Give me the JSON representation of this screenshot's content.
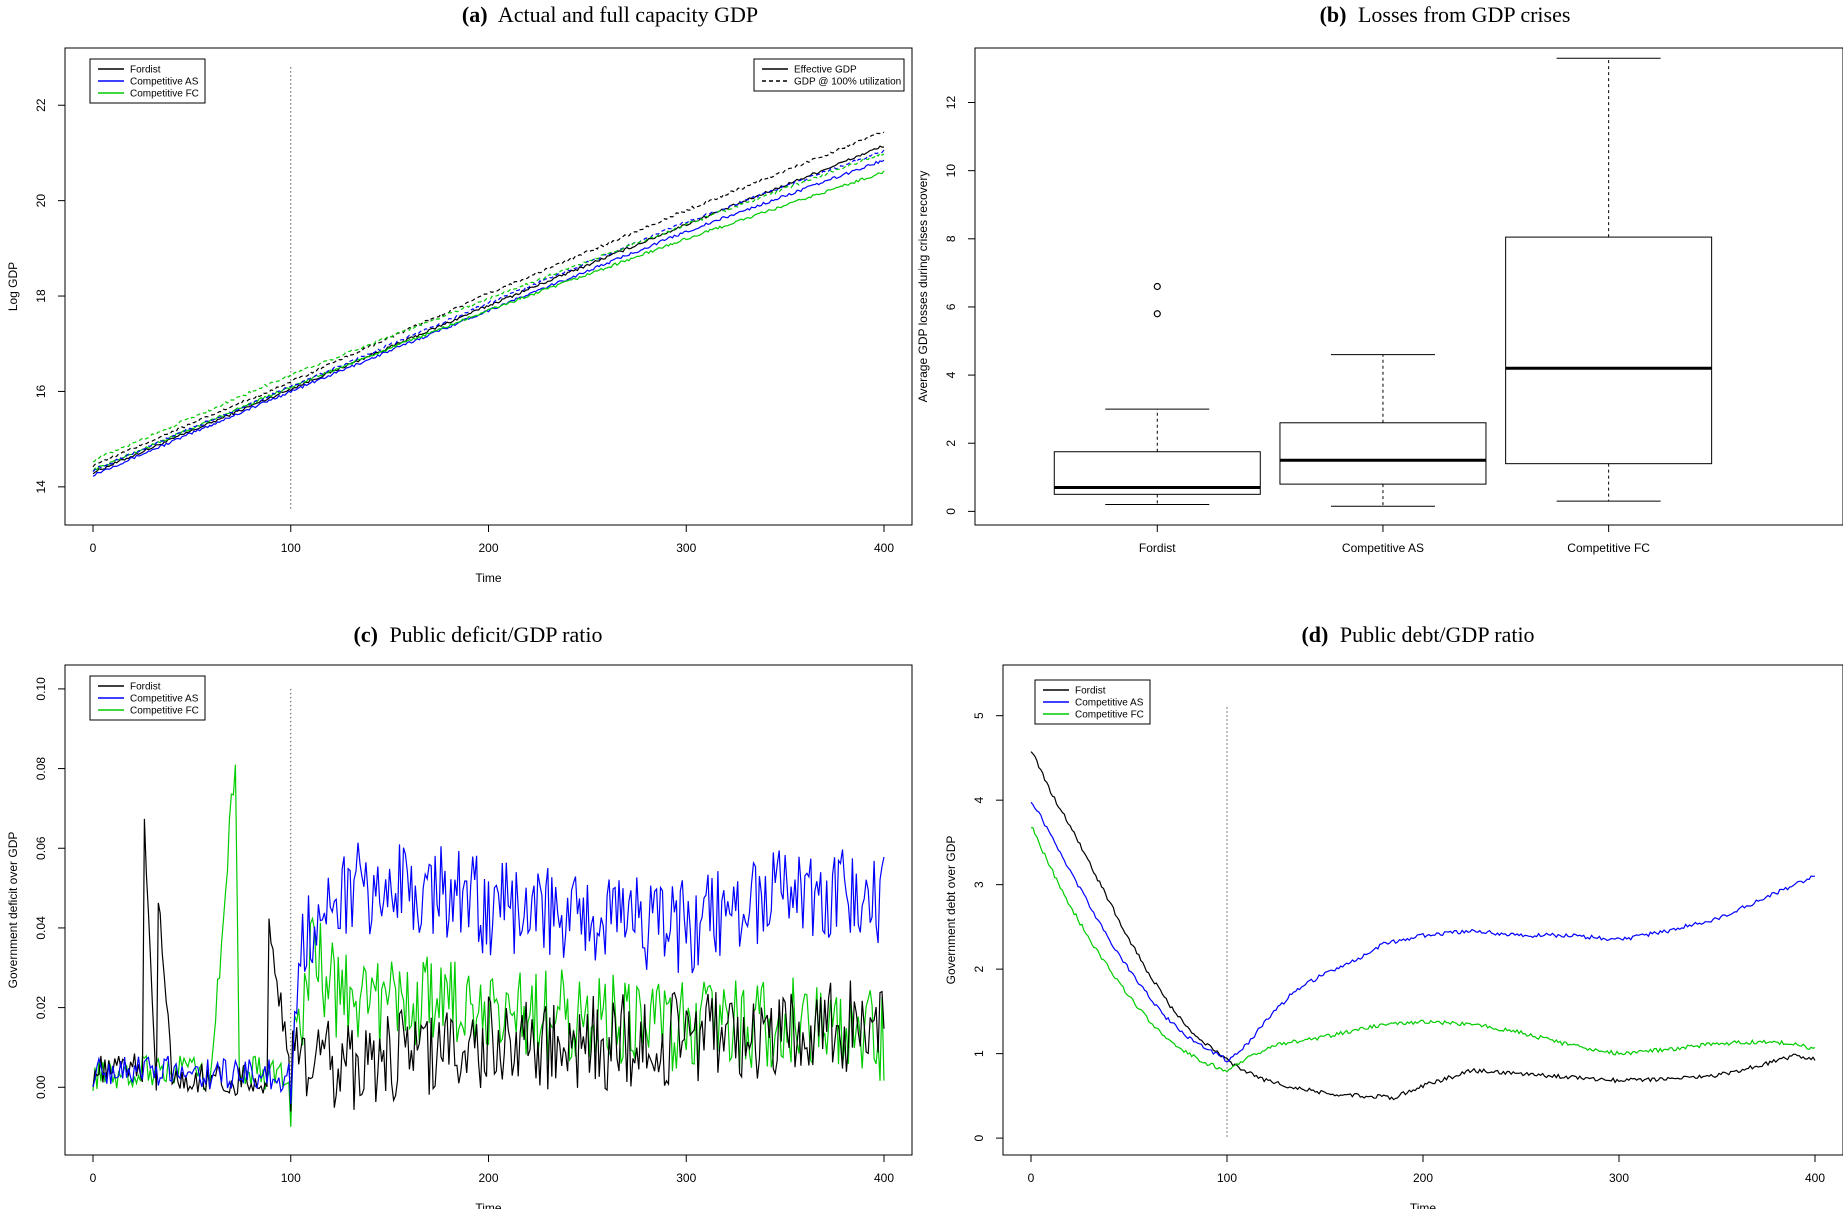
{
  "chart_data": [
    {
      "panel": "a",
      "type": "line",
      "title_prefix": "(a)",
      "title": "Actual and full capacity GDP",
      "xlabel": "Time",
      "ylabel": "Log GDP",
      "xlim": [
        0,
        400
      ],
      "ylim": [
        13.2,
        23.2
      ],
      "xticks": [
        0,
        100,
        200,
        300,
        400
      ],
      "yticks": [
        14,
        16,
        18,
        20,
        22
      ],
      "vline": 100,
      "legend_series": [
        "Fordist",
        "Competitive AS",
        "Competitive FC"
      ],
      "legend_lines": [
        "Effective GDP",
        "GDP @ 100% utilization"
      ],
      "colors": {
        "Fordist": "#000000",
        "Competitive AS": "#0000ff",
        "Competitive FC": "#00cc00"
      },
      "series": [
        {
          "name": "Fordist",
          "style": "solid",
          "x": [
            0,
            100,
            200,
            300,
            400
          ],
          "y": [
            14.3,
            16.05,
            17.8,
            19.5,
            21.15
          ]
        },
        {
          "name": "Competitive AS",
          "style": "solid",
          "x": [
            0,
            100,
            200,
            300,
            400
          ],
          "y": [
            14.25,
            16.0,
            17.7,
            19.35,
            20.85
          ]
        },
        {
          "name": "Competitive FC",
          "style": "solid",
          "x": [
            0,
            100,
            200,
            300,
            400
          ],
          "y": [
            14.35,
            16.1,
            17.7,
            19.2,
            20.6
          ]
        },
        {
          "name": "Fordist",
          "style": "dashed",
          "x": [
            0,
            100,
            200,
            300,
            400
          ],
          "y": [
            14.45,
            16.2,
            18.05,
            19.8,
            21.45
          ]
        },
        {
          "name": "Competitive AS",
          "style": "dashed",
          "x": [
            0,
            100,
            200,
            300,
            400
          ],
          "y": [
            14.35,
            16.1,
            17.85,
            19.55,
            21.05
          ]
        },
        {
          "name": "Competitive FC",
          "style": "dashed",
          "x": [
            0,
            100,
            200,
            300,
            400
          ],
          "y": [
            14.55,
            16.35,
            17.95,
            19.5,
            21.0
          ]
        }
      ]
    },
    {
      "panel": "b",
      "type": "box",
      "title_prefix": "(b)",
      "title": "Losses from GDP crises",
      "xlabel": "",
      "ylabel": "Average GDP losses during crises recovery",
      "ylim": [
        -0.4,
        13.6
      ],
      "yticks": [
        0,
        2,
        4,
        6,
        8,
        10,
        12
      ],
      "categories": [
        "Fordist",
        "Competitive AS",
        "Competitive FC"
      ],
      "boxes": [
        {
          "min": 0.2,
          "q1": 0.5,
          "median": 0.7,
          "q3": 1.75,
          "max": 3.0,
          "outliers": [
            5.8,
            6.6
          ]
        },
        {
          "min": 0.15,
          "q1": 0.8,
          "median": 1.5,
          "q3": 2.6,
          "max": 4.6,
          "outliers": []
        },
        {
          "min": 0.3,
          "q1": 1.4,
          "median": 4.2,
          "q3": 8.05,
          "max": 13.3,
          "outliers": []
        }
      ]
    },
    {
      "panel": "c",
      "type": "line",
      "title_prefix": "(c)",
      "title": "Public deficit/GDP ratio",
      "xlabel": "Time",
      "ylabel": "Government deficit over GDP",
      "xlim": [
        0,
        400
      ],
      "ylim": [
        -0.017,
        0.106
      ],
      "xticks": [
        0,
        100,
        200,
        300,
        400
      ],
      "yticks": [
        0.0,
        0.02,
        0.04,
        0.06,
        0.08,
        0.1
      ],
      "ytick_labels": [
        "0.00",
        "0.02",
        "0.04",
        "0.06",
        "0.08",
        "0.10"
      ],
      "vline": 100,
      "legend_series": [
        "Fordist",
        "Competitive AS",
        "Competitive FC"
      ],
      "colors": {
        "Fordist": "#000000",
        "Competitive AS": "#0000ff",
        "Competitive FC": "#00cc00"
      },
      "series": [
        {
          "name": "Competitive FC",
          "x": [
            0,
            20,
            40,
            60,
            72,
            74,
            80,
            100,
            110,
            120,
            140,
            160,
            180,
            200,
            250,
            300,
            350,
            400
          ],
          "y": [
            0.003,
            0.004,
            0.005,
            0.003,
            0.084,
            0.004,
            0.004,
            0.002,
            0.035,
            0.025,
            0.02,
            0.02,
            0.022,
            0.02,
            0.017,
            0.015,
            0.016,
            0.012
          ]
        },
        {
          "name": "Fordist",
          "x": [
            0,
            25,
            26,
            32,
            33,
            40,
            60,
            88,
            89,
            100,
            150,
            200,
            250,
            300,
            350,
            400
          ],
          "y": [
            0.004,
            0.005,
            0.065,
            0.002,
            0.047,
            0.003,
            0.002,
            0.002,
            0.04,
            0.003,
            0.008,
            0.012,
            0.011,
            0.012,
            0.015,
            0.015
          ]
        },
        {
          "name": "Competitive AS",
          "x": [
            0,
            20,
            40,
            60,
            80,
            100,
            105,
            120,
            150,
            175,
            200,
            250,
            300,
            350,
            400
          ],
          "y": [
            0.004,
            0.005,
            0.004,
            0.003,
            0.004,
            0.002,
            0.038,
            0.05,
            0.05,
            0.05,
            0.045,
            0.042,
            0.04,
            0.048,
            0.048
          ]
        }
      ]
    },
    {
      "panel": "d",
      "type": "line",
      "title_prefix": "(d)",
      "title": "Public debt/GDP ratio",
      "xlabel": "Time",
      "ylabel": "Government debt over GDP",
      "xlim": [
        0,
        400
      ],
      "ylim": [
        -0.2,
        5.6
      ],
      "xticks": [
        0,
        100,
        200,
        300,
        400
      ],
      "yticks": [
        0,
        1,
        2,
        3,
        4,
        5
      ],
      "vline": 100,
      "legend_series": [
        "Fordist",
        "Competitive AS",
        "Competitive FC"
      ],
      "colors": {
        "Fordist": "#000000",
        "Competitive AS": "#0000ff",
        "Competitive FC": "#00cc00"
      },
      "series": [
        {
          "name": "Fordist",
          "x": [
            0,
            10,
            20,
            30,
            40,
            50,
            60,
            70,
            80,
            90,
            100,
            115,
            130,
            150,
            170,
            185,
            200,
            225,
            250,
            275,
            300,
            325,
            350,
            375,
            390,
            400
          ],
          "y": [
            4.6,
            4.1,
            3.7,
            3.25,
            2.8,
            2.35,
            1.95,
            1.6,
            1.3,
            1.1,
            0.92,
            0.72,
            0.62,
            0.53,
            0.5,
            0.48,
            0.62,
            0.8,
            0.76,
            0.72,
            0.68,
            0.7,
            0.74,
            0.88,
            0.98,
            0.94
          ]
        },
        {
          "name": "Competitive AS",
          "x": [
            0,
            10,
            20,
            30,
            40,
            50,
            60,
            70,
            80,
            90,
            100,
            110,
            120,
            135,
            150,
            165,
            180,
            200,
            225,
            250,
            275,
            300,
            325,
            350,
            370,
            385,
            400
          ],
          "y": [
            4.0,
            3.6,
            3.15,
            2.75,
            2.35,
            2.0,
            1.68,
            1.4,
            1.2,
            1.05,
            0.92,
            1.1,
            1.4,
            1.75,
            1.95,
            2.1,
            2.3,
            2.4,
            2.45,
            2.4,
            2.4,
            2.35,
            2.45,
            2.6,
            2.8,
            2.95,
            3.1
          ]
        },
        {
          "name": "Competitive FC",
          "x": [
            0,
            10,
            20,
            30,
            40,
            50,
            60,
            70,
            80,
            90,
            100,
            110,
            125,
            150,
            175,
            200,
            225,
            250,
            275,
            300,
            325,
            350,
            375,
            390,
            400
          ],
          "y": [
            3.7,
            3.2,
            2.75,
            2.35,
            2.0,
            1.68,
            1.4,
            1.17,
            1.0,
            0.88,
            0.8,
            0.95,
            1.1,
            1.2,
            1.32,
            1.38,
            1.35,
            1.25,
            1.1,
            1.0,
            1.05,
            1.12,
            1.14,
            1.12,
            1.05
          ]
        }
      ]
    }
  ]
}
